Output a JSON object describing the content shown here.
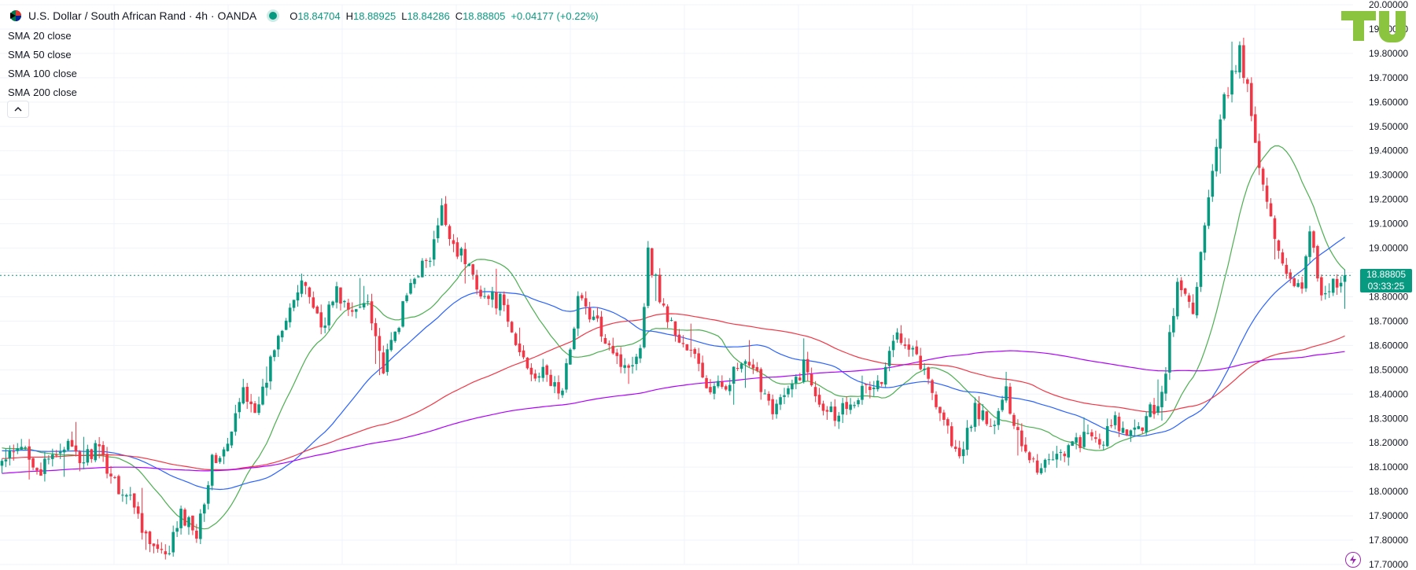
{
  "header": {
    "symbol_title": "U.S. Dollar / South African Rand · 4h · OANDA",
    "ohlc": [
      {
        "key": "O",
        "value": "18.84704"
      },
      {
        "key": "H",
        "value": "18.88925"
      },
      {
        "key": "L",
        "value": "18.84286"
      },
      {
        "key": "C",
        "value": "18.88805"
      },
      {
        "key": "",
        "value": "+0.04177 (+0.22%)"
      }
    ]
  },
  "legend": [
    {
      "name": "SMA",
      "params": "20 close",
      "color": "#4caf50"
    },
    {
      "name": "SMA",
      "params": "50 close",
      "color": "#2962ff"
    },
    {
      "name": "SMA",
      "params": "100 close",
      "color": "#f23645"
    },
    {
      "name": "SMA",
      "params": "200 close",
      "color": "#b000ff"
    }
  ],
  "current_price": {
    "value": "18.88805",
    "countdown": "03:33:25"
  },
  "logo_text": "TU",
  "colors": {
    "up": "#089981",
    "down": "#f23645",
    "sma20": "#4caf50",
    "sma50": "#2962ff",
    "sma100": "#f23645",
    "sma200": "#b000ff",
    "logo": "#8bc53f",
    "price_line": "#089981"
  },
  "icons": {
    "collapse": "chevron-up-icon",
    "symbol": "flag-icon",
    "alert": "lightning-icon"
  },
  "chart_data": {
    "type": "candlestick",
    "title": "U.S. Dollar / South African Rand · 4h · OANDA",
    "ylim": [
      17.7,
      20.0
    ],
    "y_ticks": [
      "17.70000",
      "17.80000",
      "17.90000",
      "18.00000",
      "18.10000",
      "18.20000",
      "18.30000",
      "18.40000",
      "18.50000",
      "18.60000",
      "18.70000",
      "18.80000",
      "18.90000",
      "19.00000",
      "19.10000",
      "19.20000",
      "19.30000",
      "19.40000",
      "19.50000",
      "19.60000",
      "19.70000",
      "19.80000",
      "19.90000",
      "20.00000"
    ],
    "close_anchors": [
      [
        0,
        18.12
      ],
      [
        6,
        18.18
      ],
      [
        10,
        18.08
      ],
      [
        16,
        18.2
      ],
      [
        20,
        18.12
      ],
      [
        24,
        18.18
      ],
      [
        30,
        18.02
      ],
      [
        34,
        17.95
      ],
      [
        38,
        17.78
      ],
      [
        42,
        17.72
      ],
      [
        46,
        17.9
      ],
      [
        50,
        17.84
      ],
      [
        54,
        18.12
      ],
      [
        58,
        18.18
      ],
      [
        62,
        18.42
      ],
      [
        66,
        18.33
      ],
      [
        70,
        18.6
      ],
      [
        74,
        18.78
      ],
      [
        78,
        18.85
      ],
      [
        82,
        18.68
      ],
      [
        86,
        18.82
      ],
      [
        90,
        18.72
      ],
      [
        94,
        18.8
      ],
      [
        98,
        18.5
      ],
      [
        102,
        18.7
      ],
      [
        106,
        18.9
      ],
      [
        110,
        18.95
      ],
      [
        113,
        19.15
      ],
      [
        116,
        19.02
      ],
      [
        120,
        18.92
      ],
      [
        124,
        18.8
      ],
      [
        128,
        18.78
      ],
      [
        132,
        18.6
      ],
      [
        136,
        18.5
      ],
      [
        140,
        18.47
      ],
      [
        144,
        18.4
      ],
      [
        148,
        18.8
      ],
      [
        152,
        18.7
      ],
      [
        156,
        18.62
      ],
      [
        160,
        18.5
      ],
      [
        164,
        18.6
      ],
      [
        166,
        18.98
      ],
      [
        170,
        18.75
      ],
      [
        174,
        18.62
      ],
      [
        178,
        18.55
      ],
      [
        182,
        18.4
      ],
      [
        186,
        18.45
      ],
      [
        190,
        18.52
      ],
      [
        194,
        18.47
      ],
      [
        198,
        18.35
      ],
      [
        202,
        18.4
      ],
      [
        206,
        18.52
      ],
      [
        210,
        18.38
      ],
      [
        214,
        18.32
      ],
      [
        218,
        18.38
      ],
      [
        222,
        18.42
      ],
      [
        226,
        18.45
      ],
      [
        230,
        18.66
      ],
      [
        234,
        18.6
      ],
      [
        238,
        18.45
      ],
      [
        242,
        18.3
      ],
      [
        246,
        18.12
      ],
      [
        250,
        18.35
      ],
      [
        254,
        18.25
      ],
      [
        258,
        18.4
      ],
      [
        262,
        18.2
      ],
      [
        266,
        18.1
      ],
      [
        270,
        18.15
      ],
      [
        274,
        18.18
      ],
      [
        278,
        18.22
      ],
      [
        282,
        18.2
      ],
      [
        286,
        18.28
      ],
      [
        290,
        18.22
      ],
      [
        294,
        18.3
      ],
      [
        298,
        18.4
      ],
      [
        302,
        18.85
      ],
      [
        306,
        18.75
      ],
      [
        310,
        19.2
      ],
      [
        314,
        19.6
      ],
      [
        318,
        19.8
      ],
      [
        320,
        19.65
      ],
      [
        322,
        19.45
      ],
      [
        326,
        19.1
      ],
      [
        330,
        18.9
      ],
      [
        334,
        18.85
      ],
      [
        336,
        19.05
      ],
      [
        339,
        18.82
      ],
      [
        343,
        18.86
      ],
      [
        345,
        18.89
      ]
    ],
    "candle_count": 346,
    "last_close": 18.88805,
    "series": [
      {
        "name": "SMA 20 close",
        "period": 20
      },
      {
        "name": "SMA 50 close",
        "period": 50
      },
      {
        "name": "SMA 100 close",
        "period": 100
      },
      {
        "name": "SMA 200 close",
        "period": 200
      }
    ]
  }
}
